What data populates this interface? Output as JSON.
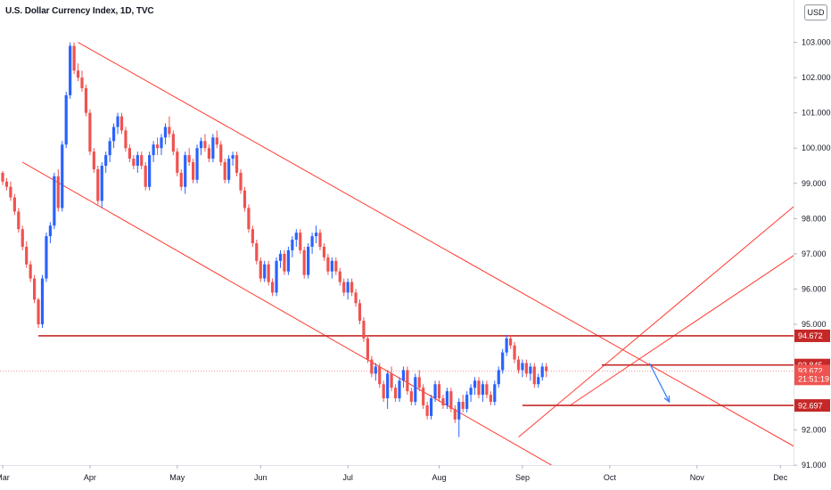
{
  "header": {
    "title": "U.S. Dollar Currency Index, 1D, TVC",
    "currency": "USD"
  },
  "colors": {
    "up": "#2962ff",
    "down": "#ef5350",
    "lines": "#ff3b30",
    "level": "#c62828",
    "arrow": "#3b82f6",
    "price_line": "#ef9a9a"
  },
  "chart_data": {
    "type": "candlestick",
    "x_axis": {
      "labels": [
        "Mar",
        "Apr",
        "May",
        "Jun",
        "Jul",
        "Aug",
        "Sep",
        "Oct",
        "Nov",
        "Dec"
      ],
      "positions": [
        0,
        22,
        44,
        65,
        87,
        110,
        131,
        153,
        175,
        196
      ]
    },
    "y_axis": {
      "ticks": [
        "103.000",
        "102.000",
        "101.000",
        "100.000",
        "99.000",
        "98.000",
        "97.000",
        "96.000",
        "95.000",
        "92.000",
        "91.000"
      ],
      "tick_values": [
        103,
        102,
        101,
        100,
        99,
        98,
        97,
        96,
        95,
        92,
        91
      ],
      "range": [
        90.5,
        104.0
      ]
    },
    "price_tags": [
      {
        "label": "94.672",
        "value": 94.672,
        "color": "#c62828"
      },
      {
        "label": "93.845",
        "value": 93.845,
        "color": "#c62828"
      },
      {
        "label": "93.672",
        "value": 93.672,
        "color": "#ef5350"
      },
      {
        "label": "21:51:19",
        "value": 93.45,
        "color": "#ef5350"
      },
      {
        "label": "92.697",
        "value": 92.697,
        "color": "#c62828"
      }
    ],
    "current_price": 93.672,
    "horizontal_levels": [
      {
        "x1": 9,
        "x2": 200,
        "y": 94.672
      },
      {
        "x1": 151,
        "x2": 200,
        "y": 93.845
      },
      {
        "x1": 131,
        "x2": 200,
        "y": 92.697
      }
    ],
    "trend_lines": [
      {
        "name": "channel-upper",
        "x1": 19,
        "y1": 103.0,
        "x2": 200,
        "y2": 91.5
      },
      {
        "name": "channel-lower",
        "x1": 5,
        "y1": 99.6,
        "x2": 143,
        "y2": 90.7
      },
      {
        "name": "rising-upper",
        "x1": 130,
        "y1": 91.8,
        "x2": 200,
        "y2": 98.4
      },
      {
        "name": "rising-lower",
        "x1": 143,
        "y1": 92.7,
        "x2": 200,
        "y2": 97.0
      }
    ],
    "projection_arrow": [
      {
        "x": 163,
        "y": 93.9
      },
      {
        "x": 168,
        "y": 92.8
      }
    ],
    "candles": [
      [
        99.3,
        99.35,
        98.95,
        99.05
      ],
      [
        99.05,
        99.15,
        98.8,
        98.9
      ],
      [
        98.9,
        99.05,
        98.5,
        98.6
      ],
      [
        98.6,
        98.7,
        98.1,
        98.2
      ],
      [
        98.2,
        98.3,
        97.6,
        97.7
      ],
      [
        97.7,
        97.8,
        97.1,
        97.2
      ],
      [
        97.2,
        97.35,
        96.6,
        96.7
      ],
      [
        96.7,
        96.8,
        96.2,
        96.3
      ],
      [
        96.3,
        96.4,
        95.6,
        95.7
      ],
      [
        95.7,
        95.75,
        94.9,
        95.0
      ],
      [
        95.0,
        96.4,
        94.9,
        96.3
      ],
      [
        96.3,
        97.6,
        96.2,
        97.5
      ],
      [
        97.5,
        97.9,
        97.3,
        97.8
      ],
      [
        97.8,
        99.3,
        97.7,
        99.2
      ],
      [
        99.2,
        99.4,
        98.2,
        98.3
      ],
      [
        98.3,
        100.2,
        98.2,
        100.1
      ],
      [
        100.1,
        101.6,
        100.0,
        101.5
      ],
      [
        101.5,
        103.0,
        101.4,
        102.9
      ],
      [
        102.9,
        103.0,
        102.1,
        102.2
      ],
      [
        102.2,
        102.4,
        101.9,
        102.0
      ],
      [
        102.0,
        102.2,
        101.6,
        101.7
      ],
      [
        101.7,
        101.8,
        100.9,
        101.0
      ],
      [
        101.0,
        101.1,
        99.8,
        99.9
      ],
      [
        99.9,
        100.0,
        99.3,
        99.4
      ],
      [
        99.4,
        99.5,
        98.4,
        98.5
      ],
      [
        98.5,
        99.6,
        98.3,
        99.5
      ],
      [
        99.5,
        99.9,
        99.3,
        99.8
      ],
      [
        99.8,
        100.3,
        99.6,
        100.2
      ],
      [
        100.2,
        100.7,
        100.0,
        100.6
      ],
      [
        100.6,
        101.0,
        100.4,
        100.9
      ],
      [
        100.9,
        101.0,
        100.4,
        100.5
      ],
      [
        100.5,
        100.6,
        99.9,
        100.0
      ],
      [
        100.0,
        100.1,
        99.6,
        99.7
      ],
      [
        99.7,
        99.8,
        99.4,
        99.5
      ],
      [
        99.5,
        99.9,
        99.3,
        99.8
      ],
      [
        99.8,
        99.9,
        99.4,
        99.5
      ],
      [
        99.5,
        99.6,
        98.8,
        98.9
      ],
      [
        98.9,
        99.9,
        98.8,
        99.8
      ],
      [
        99.8,
        100.2,
        99.6,
        100.1
      ],
      [
        100.1,
        100.3,
        99.8,
        100.0
      ],
      [
        100.0,
        100.4,
        99.8,
        100.3
      ],
      [
        100.3,
        100.7,
        100.1,
        100.6
      ],
      [
        100.6,
        100.9,
        100.3,
        100.4
      ],
      [
        100.4,
        100.5,
        99.8,
        99.9
      ],
      [
        99.9,
        100.0,
        99.2,
        99.3
      ],
      [
        99.3,
        99.4,
        98.8,
        98.9
      ],
      [
        98.9,
        99.9,
        98.7,
        99.8
      ],
      [
        99.8,
        100.0,
        99.5,
        99.6
      ],
      [
        99.6,
        99.7,
        99.0,
        99.1
      ],
      [
        99.1,
        100.1,
        99.0,
        100.0
      ],
      [
        100.0,
        100.3,
        99.8,
        100.2
      ],
      [
        100.2,
        100.4,
        99.9,
        100.0
      ],
      [
        100.0,
        100.1,
        99.6,
        99.7
      ],
      [
        99.7,
        100.4,
        99.6,
        100.3
      ],
      [
        100.3,
        100.5,
        100.0,
        100.1
      ],
      [
        100.1,
        100.2,
        99.5,
        99.6
      ],
      [
        99.6,
        99.7,
        99.0,
        99.1
      ],
      [
        99.1,
        99.8,
        99.0,
        99.7
      ],
      [
        99.7,
        99.9,
        99.5,
        99.8
      ],
      [
        99.8,
        99.9,
        99.2,
        99.3
      ],
      [
        99.3,
        99.4,
        98.7,
        98.8
      ],
      [
        98.8,
        98.9,
        98.2,
        98.3
      ],
      [
        98.3,
        98.4,
        97.6,
        97.7
      ],
      [
        97.7,
        97.8,
        97.2,
        97.3
      ],
      [
        97.3,
        97.4,
        96.7,
        96.8
      ],
      [
        96.8,
        96.9,
        96.2,
        96.3
      ],
      [
        96.3,
        96.8,
        96.2,
        96.7
      ],
      [
        96.7,
        96.8,
        96.1,
        96.2
      ],
      [
        96.2,
        96.3,
        95.8,
        95.9
      ],
      [
        95.9,
        96.9,
        95.8,
        96.8
      ],
      [
        96.8,
        97.1,
        96.6,
        97.0
      ],
      [
        97.0,
        97.1,
        96.4,
        96.5
      ],
      [
        96.5,
        97.2,
        96.4,
        97.1
      ],
      [
        97.1,
        97.5,
        96.9,
        97.4
      ],
      [
        97.4,
        97.7,
        97.2,
        97.6
      ],
      [
        97.6,
        97.7,
        97.0,
        97.1
      ],
      [
        97.1,
        97.2,
        96.3,
        96.4
      ],
      [
        96.4,
        97.3,
        96.3,
        97.2
      ],
      [
        97.2,
        97.6,
        97.0,
        97.5
      ],
      [
        97.5,
        97.8,
        97.3,
        97.6
      ],
      [
        97.6,
        97.7,
        97.1,
        97.2
      ],
      [
        97.2,
        97.3,
        96.8,
        96.9
      ],
      [
        96.9,
        97.0,
        96.4,
        96.5
      ],
      [
        96.5,
        96.9,
        96.3,
        96.8
      ],
      [
        96.8,
        96.9,
        96.4,
        96.5
      ],
      [
        96.5,
        96.6,
        96.1,
        96.2
      ],
      [
        96.2,
        96.3,
        95.8,
        95.9
      ],
      [
        95.9,
        96.3,
        95.7,
        96.2
      ],
      [
        96.2,
        96.3,
        95.8,
        95.9
      ],
      [
        95.9,
        96.0,
        95.5,
        95.6
      ],
      [
        95.6,
        95.7,
        95.0,
        95.1
      ],
      [
        95.1,
        95.2,
        94.5,
        94.6
      ],
      [
        94.6,
        94.7,
        93.9,
        94.0
      ],
      [
        94.0,
        94.1,
        93.5,
        93.6
      ],
      [
        93.6,
        93.9,
        93.4,
        93.8
      ],
      [
        93.8,
        93.9,
        93.2,
        93.3
      ],
      [
        93.3,
        93.4,
        92.8,
        92.9
      ],
      [
        92.9,
        93.7,
        92.6,
        93.6
      ],
      [
        93.6,
        93.8,
        93.1,
        93.2
      ],
      [
        93.2,
        93.3,
        92.8,
        92.9
      ],
      [
        92.9,
        93.5,
        92.8,
        93.4
      ],
      [
        93.4,
        93.8,
        93.2,
        93.7
      ],
      [
        93.7,
        93.8,
        93.0,
        93.1
      ],
      [
        93.1,
        93.2,
        92.7,
        92.8
      ],
      [
        92.8,
        93.6,
        92.7,
        93.5
      ],
      [
        93.5,
        93.7,
        93.1,
        93.2
      ],
      [
        93.2,
        93.3,
        92.6,
        92.7
      ],
      [
        92.7,
        92.8,
        92.3,
        92.4
      ],
      [
        92.4,
        93.0,
        92.3,
        92.9
      ],
      [
        92.9,
        93.4,
        92.8,
        93.3
      ],
      [
        93.3,
        93.4,
        92.8,
        92.9
      ],
      [
        92.9,
        93.0,
        92.6,
        92.7
      ],
      [
        92.7,
        93.2,
        92.6,
        93.1
      ],
      [
        93.1,
        93.2,
        92.5,
        92.6
      ],
      [
        92.6,
        92.7,
        92.2,
        92.3
      ],
      [
        92.3,
        92.9,
        91.8,
        92.8
      ],
      [
        92.8,
        93.0,
        92.5,
        92.6
      ],
      [
        92.6,
        93.1,
        92.5,
        93.0
      ],
      [
        93.0,
        93.3,
        92.8,
        93.2
      ],
      [
        93.2,
        93.5,
        93.0,
        93.4
      ],
      [
        93.4,
        93.5,
        92.9,
        93.0
      ],
      [
        93.0,
        93.4,
        92.8,
        93.3
      ],
      [
        93.3,
        93.4,
        92.9,
        93.0
      ],
      [
        93.0,
        93.1,
        92.7,
        92.8
      ],
      [
        92.8,
        93.4,
        92.7,
        93.3
      ],
      [
        93.3,
        93.8,
        93.2,
        93.7
      ],
      [
        93.7,
        94.3,
        93.6,
        94.2
      ],
      [
        94.2,
        94.7,
        94.1,
        94.6
      ],
      [
        94.6,
        94.7,
        94.3,
        94.4
      ],
      [
        94.4,
        94.5,
        93.9,
        94.0
      ],
      [
        94.0,
        94.1,
        93.6,
        93.7
      ],
      [
        93.7,
        94.0,
        93.5,
        93.9
      ],
      [
        93.9,
        94.0,
        93.5,
        93.6
      ],
      [
        93.6,
        93.9,
        93.4,
        93.8
      ],
      [
        93.8,
        93.9,
        93.2,
        93.3
      ],
      [
        93.3,
        93.6,
        93.2,
        93.5
      ],
      [
        93.5,
        93.9,
        93.4,
        93.8
      ],
      [
        93.8,
        93.9,
        93.5,
        93.672
      ]
    ]
  }
}
